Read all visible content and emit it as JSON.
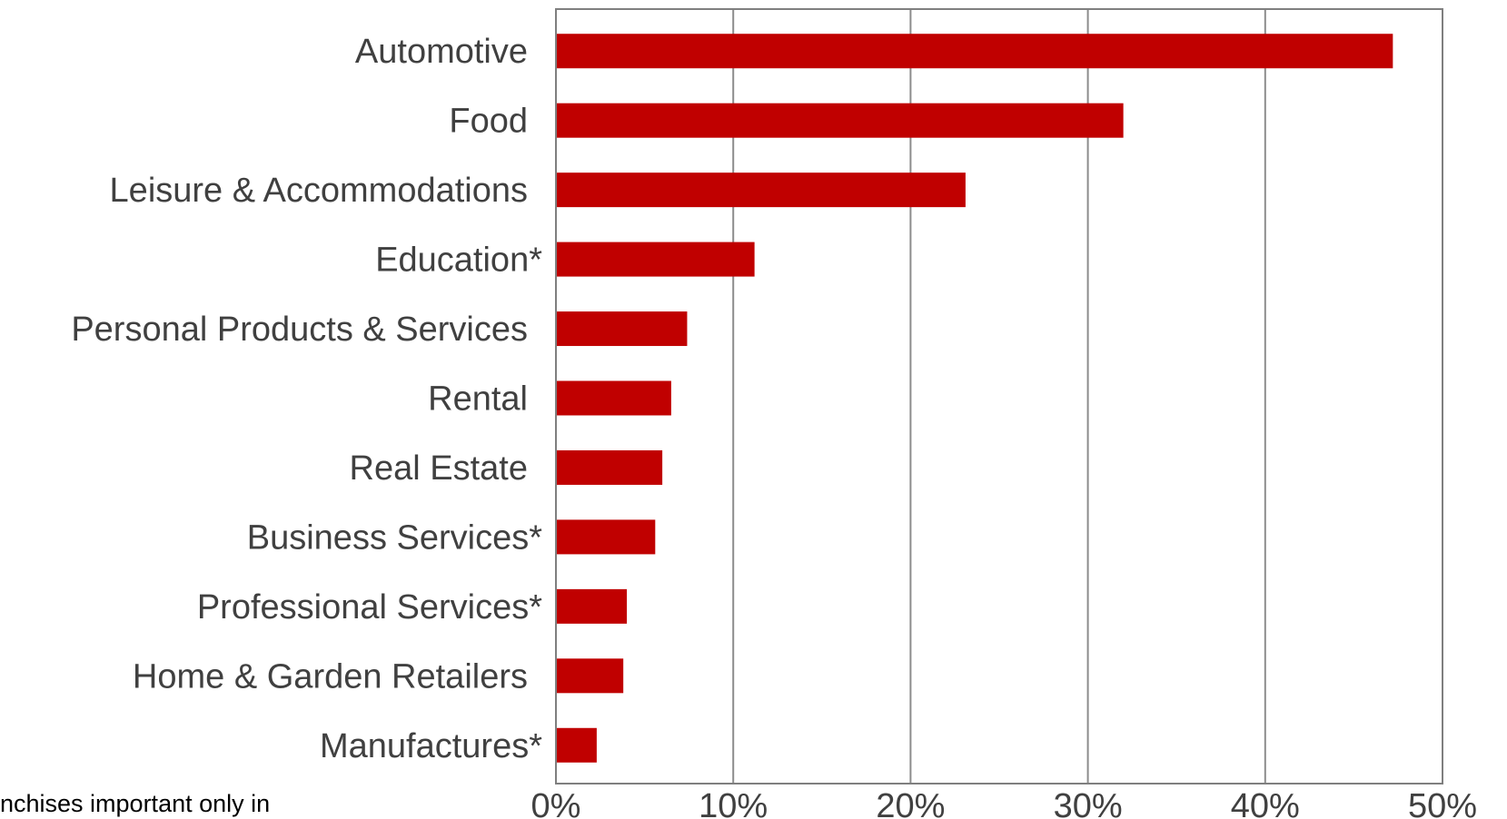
{
  "chart_data": {
    "type": "bar",
    "orientation": "horizontal",
    "categories": [
      "Automotive",
      "Food",
      "Leisure & Accommodations",
      "Education*",
      "Personal Products & Services",
      "Rental",
      "Real Estate",
      "Business Services*",
      "Professional Services*",
      "Home & Garden Retailers",
      "Manufactures*"
    ],
    "values": [
      47.2,
      32.0,
      23.1,
      11.2,
      7.4,
      6.5,
      6.0,
      5.6,
      4.0,
      3.8,
      2.3
    ],
    "xlim": [
      0,
      50
    ],
    "xticks": [
      "0%",
      "10%",
      "20%",
      "30%",
      "40%",
      "50%"
    ],
    "title": "",
    "xlabel": "",
    "ylabel": "",
    "grid": "vertical",
    "legend": "none",
    "bar_color": "#c00000",
    "grid_color": "#8c8c8c",
    "axis_color": "#7f7f7f",
    "label_color": "#404040"
  },
  "footnote": "nchises important only in"
}
